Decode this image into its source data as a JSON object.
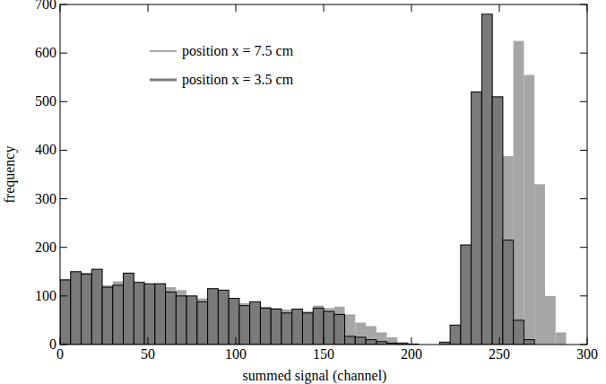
{
  "chart_data": {
    "type": "histogram",
    "x_label": "summed signal (channel)",
    "y_label": "frequency",
    "xlim": [
      0,
      300
    ],
    "xticks": [
      0,
      50,
      100,
      150,
      200,
      250,
      300
    ],
    "ylim": [
      0,
      700
    ],
    "yticks": [
      0,
      100,
      200,
      300,
      400,
      500,
      600,
      700
    ],
    "legend": "upper left",
    "bins": [
      0,
      6,
      12,
      18,
      24,
      30,
      36,
      42,
      48,
      54,
      60,
      66,
      72,
      78,
      84,
      90,
      96,
      102,
      108,
      114,
      120,
      126,
      132,
      138,
      144,
      150,
      156,
      162,
      168,
      174,
      180,
      186,
      192,
      198,
      204,
      210,
      216,
      222,
      228,
      234,
      240,
      246,
      252,
      258,
      264,
      270,
      276,
      282,
      288,
      294,
      300
    ],
    "series": [
      {
        "name": "position x = 7.5 cm",
        "color": "#a6a6a6",
        "values": [
          135,
          150,
          148,
          155,
          122,
          130,
          140,
          128,
          125,
          126,
          118,
          112,
          100,
          95,
          110,
          108,
          95,
          85,
          82,
          78,
          75,
          72,
          70,
          68,
          80,
          75,
          78,
          62,
          45,
          38,
          25,
          15,
          5,
          2,
          0,
          0,
          0,
          3,
          20,
          90,
          200,
          330,
          388,
          625,
          555,
          330,
          100,
          25,
          0,
          0
        ]
      },
      {
        "name": "position x = 3.5 cm",
        "color": "#7a7a7a",
        "values": [
          133,
          150,
          145,
          155,
          118,
          122,
          147,
          128,
          125,
          125,
          108,
          100,
          100,
          88,
          115,
          112,
          95,
          80,
          88,
          75,
          73,
          65,
          73,
          65,
          75,
          68,
          62,
          17,
          15,
          10,
          6,
          3,
          2,
          1,
          0,
          0,
          5,
          40,
          205,
          520,
          680,
          510,
          215,
          50,
          10,
          0,
          0,
          0,
          0,
          0
        ]
      }
    ]
  }
}
